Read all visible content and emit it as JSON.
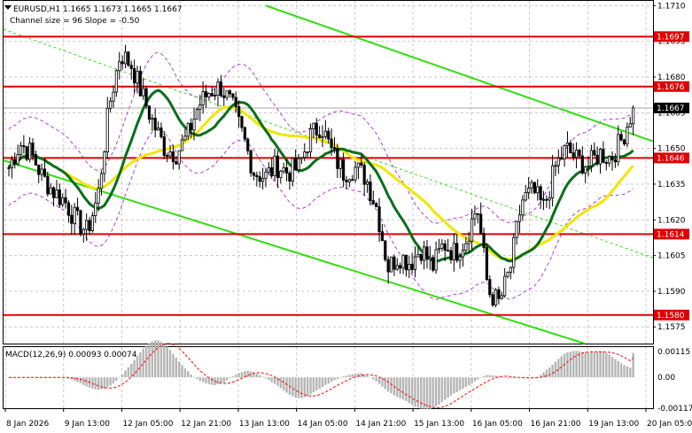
{
  "header": {
    "symbol_line": "EURUSD,H1  1.1665 1.1673 1.1665 1.1667",
    "channel_line": "Channel size = 96 Slope = -0.50"
  },
  "macd": {
    "label": "MACD(12,26,9) 0.00093 0.00074",
    "y_ticks": [
      "0.00115",
      "0.00",
      "-0.00117"
    ]
  },
  "price_axis_ticks": [
    "1.1710",
    "1.1695",
    "1.1680",
    "1.1665",
    "1.1650",
    "1.1635",
    "1.1620",
    "1.1605",
    "1.1590",
    "1.1575"
  ],
  "time_axis_ticks": [
    "8 Jan 2026",
    "9 Jan 13:00",
    "12 Jan 05:00",
    "12 Jan 21:00",
    "13 Jan 13:00",
    "14 Jan 05:00",
    "14 Jan 21:00",
    "15 Jan 13:00",
    "16 Jan 05:00",
    "16 Jan 21:00",
    "19 Jan 13:00",
    "20 Jan 05:00"
  ],
  "colors": {
    "level": "#e00000",
    "channel": "#33dd11",
    "ma_fast": "#0a6e1a",
    "ma_slow": "#f2e600",
    "bands": "#b040d0",
    "candles": "#000000",
    "macd_hist": "#b5b5b5",
    "macd_signal": "#ff0000"
  },
  "chart_data": {
    "type": "candlestick",
    "symbol": "EURUSD",
    "timeframe": "H1",
    "ohlc_last": {
      "open": 1.1665,
      "high": 1.1673,
      "low": 1.1665,
      "close": 1.1667
    },
    "levels": [
      {
        "value": 1.1697,
        "label": "1.1697"
      },
      {
        "value": 1.1676,
        "label": "1.1676"
      },
      {
        "value": 1.1646,
        "label": "1.1646"
      },
      {
        "value": 1.1614,
        "label": "1.1614"
      },
      {
        "value": 1.158,
        "label": "1.1580"
      }
    ],
    "current_price": {
      "value": 1.1667,
      "label": "1.1667"
    },
    "channel": {
      "size": 96,
      "slope": -0.5
    },
    "ylim": [
      1.1568,
      1.1712
    ],
    "macd": {
      "params": "12,26,9",
      "macd": 0.00093,
      "signal": 0.00074,
      "ylim": [
        -0.00117,
        0.00115
      ]
    },
    "close_path": [
      1.1642,
      1.1652,
      1.1648,
      1.1638,
      1.1632,
      1.1628,
      1.162,
      1.1615,
      1.163,
      1.1668,
      1.169,
      1.1685,
      1.1672,
      1.166,
      1.165,
      1.1648,
      1.1655,
      1.1668,
      1.1674,
      1.1676,
      1.1668,
      1.1655,
      1.164,
      1.1638,
      1.1643,
      1.164,
      1.1642,
      1.1655,
      1.166,
      1.1648,
      1.164,
      1.1642,
      1.1638,
      1.1625,
      1.16,
      1.1605,
      1.1602,
      1.1608,
      1.16,
      1.161,
      1.1606,
      1.1612,
      1.1626,
      1.159,
      1.1585,
      1.16,
      1.1628,
      1.1632,
      1.1625,
      1.1642,
      1.165,
      1.1645,
      1.1643,
      1.1648,
      1.1646,
      1.1654,
      1.1667
    ]
  }
}
